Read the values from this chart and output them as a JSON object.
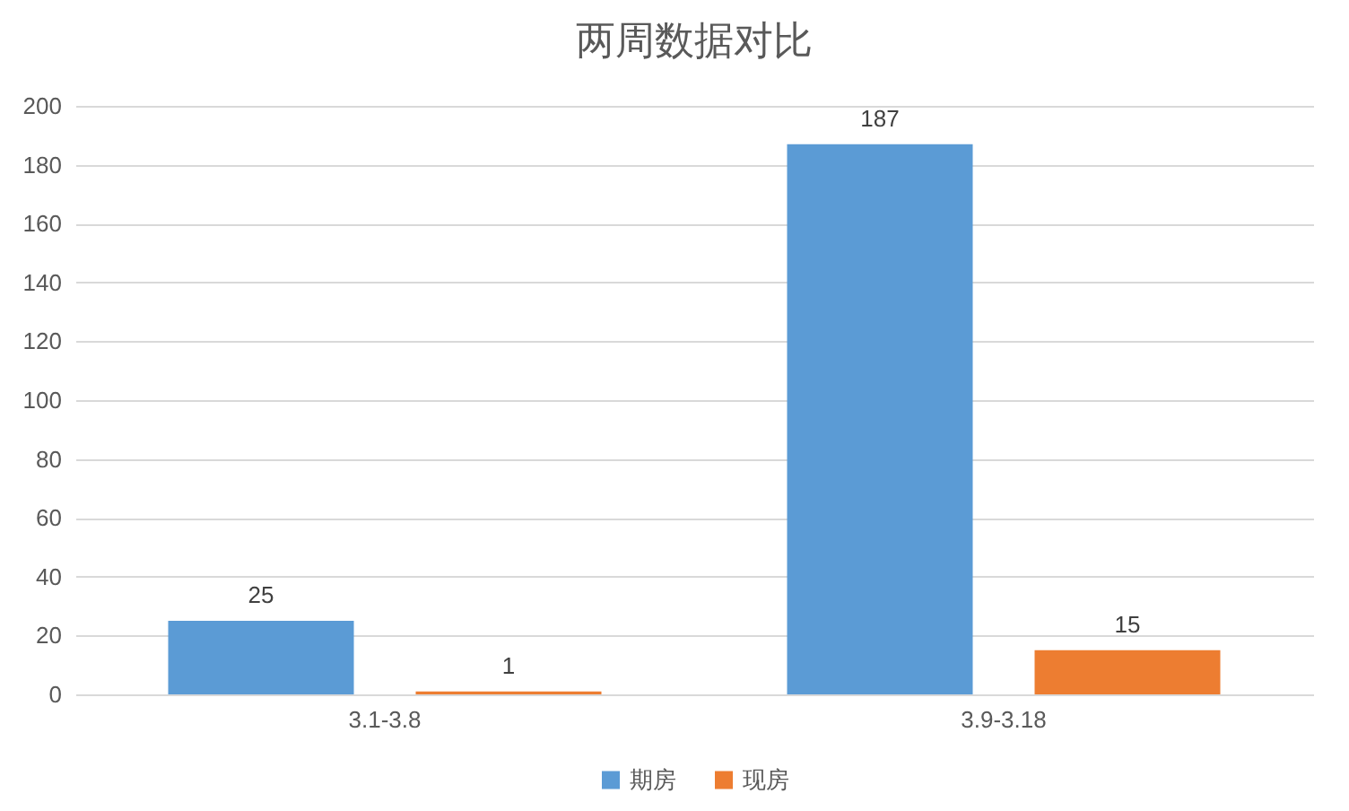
{
  "chart_data": {
    "type": "bar",
    "title": "两周数据对比",
    "categories": [
      "3.1-3.8",
      "3.9-3.18"
    ],
    "series": [
      {
        "name": "期房",
        "color": "#5b9bd5",
        "values": [
          25,
          187
        ]
      },
      {
        "name": "现房",
        "color": "#ed7d31",
        "values": [
          1,
          15
        ]
      }
    ],
    "ylim": [
      0,
      200
    ],
    "yticks": [
      0,
      20,
      40,
      60,
      80,
      100,
      120,
      140,
      160,
      180,
      200
    ],
    "grid": "y",
    "legend": "bottom",
    "data_labels": true
  }
}
